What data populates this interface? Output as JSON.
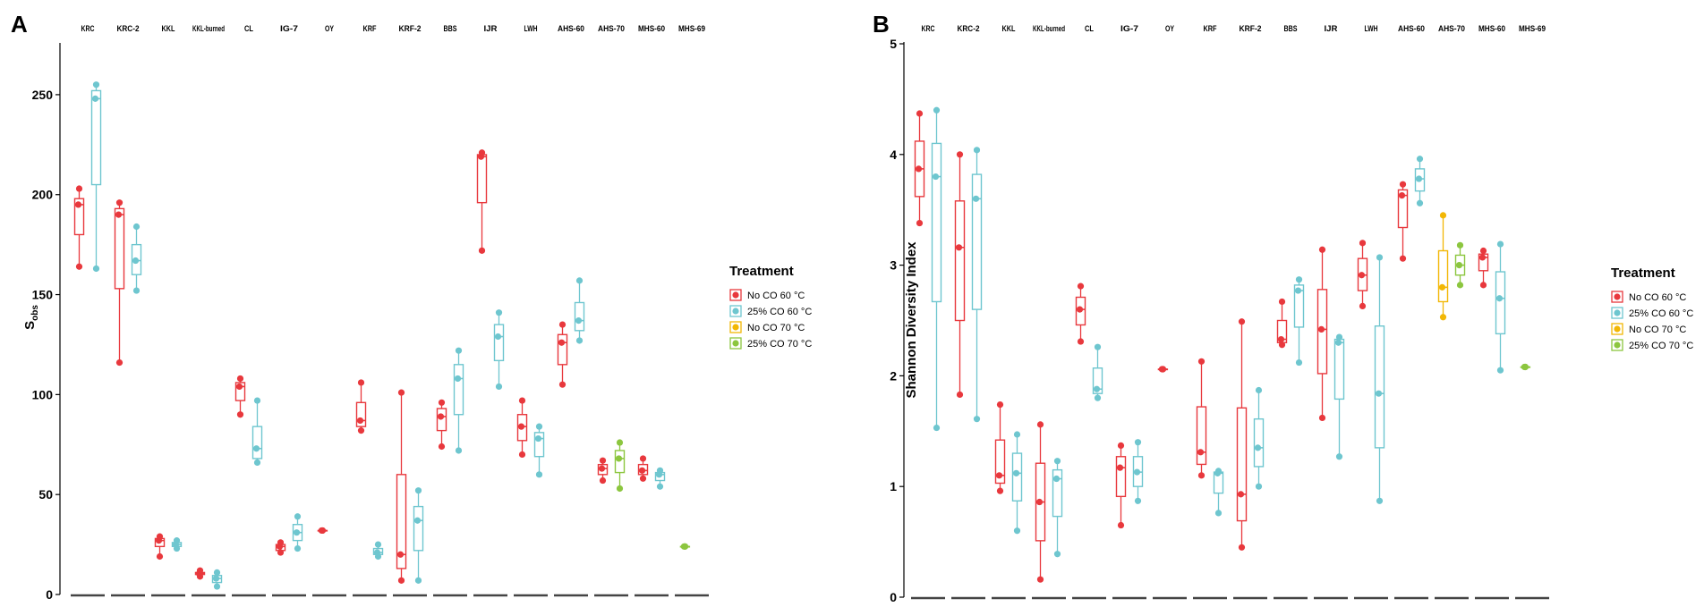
{
  "colors": {
    "no_co_60": "#e8383d",
    "co25_60": "#6ec6cf",
    "no_co_70": "#f2b705",
    "co25_70": "#8cc63f",
    "axis": "#000000",
    "strip_line": "#444444"
  },
  "chart_data": [
    {
      "type": "box",
      "panel_label": "A",
      "ylabel_main": "S",
      "ylabel_sub": "obs",
      "ylim": [
        0,
        275
      ],
      "yticks": [
        "0",
        "50",
        "100",
        "150",
        "200",
        "250"
      ],
      "ytick_values": [
        0,
        50,
        100,
        150,
        200,
        250
      ],
      "facets": [
        "KRC",
        "KRC-2",
        "KKL",
        "KKL-burned",
        "CL",
        "IG-7",
        "OY",
        "KRF",
        "KRF-2",
        "BBS",
        "IJR",
        "LWH",
        "AHS-60",
        "AHS-70",
        "MHS-60",
        "MHS-69"
      ],
      "legend_title": "Treatment",
      "legend": [
        "No CO 60 °C",
        "25% CO 60 °C",
        "No CO 70 °C",
        "25% CO 70 °C"
      ],
      "series": [
        {
          "facet": 0,
          "treatment": 0,
          "values": [
            164,
            180,
            195,
            198,
            203
          ]
        },
        {
          "facet": 0,
          "treatment": 1,
          "values": [
            163,
            205,
            248,
            252,
            255
          ]
        },
        {
          "facet": 1,
          "treatment": 0,
          "values": [
            116,
            153,
            190,
            193,
            196
          ]
        },
        {
          "facet": 1,
          "treatment": 1,
          "values": [
            152,
            160,
            167,
            175,
            184
          ]
        },
        {
          "facet": 2,
          "treatment": 0,
          "values": [
            19,
            24,
            27,
            28,
            29
          ]
        },
        {
          "facet": 2,
          "treatment": 1,
          "values": [
            23,
            24,
            25,
            26,
            27
          ]
        },
        {
          "facet": 3,
          "treatment": 0,
          "values": [
            9,
            10,
            10.5,
            11,
            12
          ]
        },
        {
          "facet": 3,
          "treatment": 1,
          "values": [
            4,
            6,
            8,
            9.5,
            11
          ]
        },
        {
          "facet": 4,
          "treatment": 0,
          "values": [
            90,
            97,
            104,
            106,
            108
          ]
        },
        {
          "facet": 4,
          "treatment": 1,
          "values": [
            66,
            68,
            73,
            84,
            97
          ]
        },
        {
          "facet": 5,
          "treatment": 0,
          "values": [
            21,
            22,
            24,
            25,
            26
          ]
        },
        {
          "facet": 5,
          "treatment": 1,
          "values": [
            23,
            27,
            31,
            35,
            39
          ]
        },
        {
          "facet": 6,
          "treatment": 0,
          "values": [
            32,
            32,
            32,
            32,
            32
          ]
        },
        {
          "facet": 7,
          "treatment": 0,
          "values": [
            82,
            84,
            87,
            96,
            106
          ]
        },
        {
          "facet": 7,
          "treatment": 1,
          "values": [
            19,
            20,
            21,
            23,
            25
          ]
        },
        {
          "facet": 8,
          "treatment": 0,
          "values": [
            7,
            13,
            20,
            60,
            101
          ]
        },
        {
          "facet": 8,
          "treatment": 1,
          "values": [
            7,
            22,
            37,
            44,
            52
          ]
        },
        {
          "facet": 9,
          "treatment": 0,
          "values": [
            74,
            82,
            89,
            93,
            96
          ]
        },
        {
          "facet": 9,
          "treatment": 1,
          "values": [
            72,
            90,
            108,
            115,
            122
          ]
        },
        {
          "facet": 10,
          "treatment": 0,
          "values": [
            172,
            196,
            219,
            220,
            221
          ]
        },
        {
          "facet": 10,
          "treatment": 1,
          "values": [
            104,
            117,
            129,
            135,
            141
          ]
        },
        {
          "facet": 11,
          "treatment": 0,
          "values": [
            70,
            77,
            84,
            90,
            97
          ]
        },
        {
          "facet": 11,
          "treatment": 1,
          "values": [
            60,
            69,
            78,
            81,
            84
          ]
        },
        {
          "facet": 12,
          "treatment": 0,
          "values": [
            105,
            115,
            126,
            130,
            135
          ]
        },
        {
          "facet": 12,
          "treatment": 1,
          "values": [
            127,
            132,
            137,
            146,
            157
          ]
        },
        {
          "facet": 13,
          "treatment": 0,
          "values": [
            57,
            60,
            63,
            65,
            67
          ]
        },
        {
          "facet": 13,
          "treatment": 3,
          "values": [
            53,
            61,
            68,
            72,
            76
          ]
        },
        {
          "facet": 14,
          "treatment": 0,
          "values": [
            58,
            60,
            62,
            65,
            68
          ]
        },
        {
          "facet": 14,
          "treatment": 1,
          "values": [
            54,
            57,
            60,
            61,
            62
          ]
        },
        {
          "facet": 15,
          "treatment": 3,
          "values": [
            24,
            24,
            24,
            24,
            24
          ]
        }
      ]
    },
    {
      "type": "box",
      "panel_label": "B",
      "ylabel_main": "Shannon Diversity Index",
      "ylim": [
        0,
        5
      ],
      "yticks": [
        "0",
        "1",
        "2",
        "3",
        "4",
        "5"
      ],
      "ytick_values": [
        0,
        1,
        2,
        3,
        4,
        5
      ],
      "facets": [
        "KRC",
        "KRC-2",
        "KKL",
        "KKL-burned",
        "CL",
        "IG-7",
        "OY",
        "KRF",
        "KRF-2",
        "BBS",
        "IJR",
        "LWH",
        "AHS-60",
        "AHS-70",
        "MHS-60",
        "MHS-69"
      ],
      "legend_title": "Treatment",
      "legend": [
        "No CO 60 °C",
        "25% CO 60 °C",
        "No CO 70 °C",
        "25% CO 70 °C"
      ],
      "series": [
        {
          "facet": 0,
          "treatment": 0,
          "values": [
            3.38,
            3.62,
            3.87,
            4.12,
            4.37
          ]
        },
        {
          "facet": 0,
          "treatment": 1,
          "values": [
            1.53,
            2.67,
            3.8,
            4.1,
            4.4
          ]
        },
        {
          "facet": 1,
          "treatment": 0,
          "values": [
            1.83,
            2.5,
            3.16,
            3.58,
            4.0
          ]
        },
        {
          "facet": 1,
          "treatment": 1,
          "values": [
            1.61,
            2.6,
            3.6,
            3.82,
            4.04
          ]
        },
        {
          "facet": 2,
          "treatment": 0,
          "values": [
            0.96,
            1.03,
            1.1,
            1.42,
            1.74
          ]
        },
        {
          "facet": 2,
          "treatment": 1,
          "values": [
            0.6,
            0.87,
            1.12,
            1.3,
            1.47
          ]
        },
        {
          "facet": 3,
          "treatment": 0,
          "values": [
            0.16,
            0.51,
            0.86,
            1.21,
            1.56
          ]
        },
        {
          "facet": 3,
          "treatment": 1,
          "values": [
            0.39,
            0.73,
            1.07,
            1.15,
            1.23
          ]
        },
        {
          "facet": 4,
          "treatment": 0,
          "values": [
            2.31,
            2.46,
            2.6,
            2.71,
            2.81
          ]
        },
        {
          "facet": 4,
          "treatment": 1,
          "values": [
            1.8,
            1.84,
            1.88,
            2.07,
            2.26
          ]
        },
        {
          "facet": 5,
          "treatment": 0,
          "values": [
            0.65,
            0.91,
            1.17,
            1.27,
            1.37
          ]
        },
        {
          "facet": 5,
          "treatment": 1,
          "values": [
            0.87,
            1.0,
            1.13,
            1.27,
            1.4
          ]
        },
        {
          "facet": 6,
          "treatment": 0,
          "values": [
            2.06,
            2.06,
            2.06,
            2.06,
            2.06
          ]
        },
        {
          "facet": 7,
          "treatment": 0,
          "values": [
            1.1,
            1.2,
            1.31,
            1.72,
            2.13
          ]
        },
        {
          "facet": 7,
          "treatment": 1,
          "values": [
            0.76,
            0.94,
            1.12,
            1.13,
            1.14
          ]
        },
        {
          "facet": 8,
          "treatment": 0,
          "values": [
            0.45,
            0.69,
            0.93,
            1.71,
            2.49
          ]
        },
        {
          "facet": 8,
          "treatment": 1,
          "values": [
            1.0,
            1.18,
            1.35,
            1.61,
            1.87
          ]
        },
        {
          "facet": 9,
          "treatment": 0,
          "values": [
            2.28,
            2.3,
            2.33,
            2.5,
            2.67
          ]
        },
        {
          "facet": 9,
          "treatment": 1,
          "values": [
            2.12,
            2.44,
            2.77,
            2.82,
            2.87
          ]
        },
        {
          "facet": 10,
          "treatment": 0,
          "values": [
            1.62,
            2.02,
            2.42,
            2.78,
            3.14
          ]
        },
        {
          "facet": 10,
          "treatment": 1,
          "values": [
            1.27,
            1.79,
            2.3,
            2.33,
            2.35
          ]
        },
        {
          "facet": 11,
          "treatment": 0,
          "values": [
            2.63,
            2.77,
            2.91,
            3.06,
            3.2
          ]
        },
        {
          "facet": 11,
          "treatment": 1,
          "values": [
            0.87,
            1.35,
            1.84,
            2.45,
            3.07
          ]
        },
        {
          "facet": 12,
          "treatment": 0,
          "values": [
            3.06,
            3.34,
            3.63,
            3.68,
            3.73
          ]
        },
        {
          "facet": 12,
          "treatment": 1,
          "values": [
            3.56,
            3.67,
            3.78,
            3.87,
            3.96
          ]
        },
        {
          "facet": 13,
          "treatment": 2,
          "values": [
            2.53,
            2.67,
            2.8,
            3.13,
            3.45
          ]
        },
        {
          "facet": 13,
          "treatment": 3,
          "values": [
            2.82,
            2.91,
            3.0,
            3.09,
            3.18
          ]
        },
        {
          "facet": 14,
          "treatment": 0,
          "values": [
            2.82,
            2.95,
            3.07,
            3.1,
            3.13
          ]
        },
        {
          "facet": 14,
          "treatment": 1,
          "values": [
            2.05,
            2.38,
            2.7,
            2.94,
            3.19
          ]
        },
        {
          "facet": 15,
          "treatment": 3,
          "values": [
            2.08,
            2.08,
            2.08,
            2.08,
            2.08
          ]
        }
      ]
    }
  ]
}
